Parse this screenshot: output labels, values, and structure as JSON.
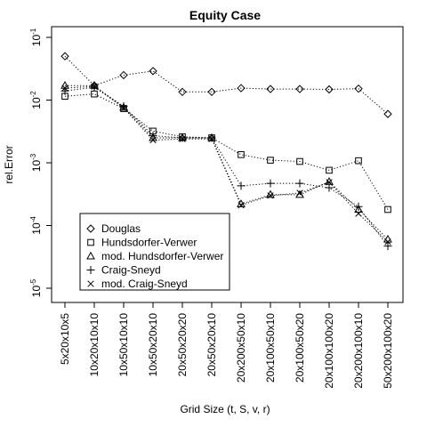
{
  "chart_data": {
    "type": "line",
    "title": "Equity Case",
    "xlabel": "Grid Size (t, S, v, r)",
    "ylabel": "rel.Error",
    "y_scale": "log",
    "ylim": [
      1e-05,
      0.1
    ],
    "y_ticks": [
      {
        "value": 1e-05,
        "base": "10",
        "exp": "-5"
      },
      {
        "value": 0.0001,
        "base": "10",
        "exp": "-4"
      },
      {
        "value": 0.001,
        "base": "10",
        "exp": "-3"
      },
      {
        "value": 0.01,
        "base": "10",
        "exp": "-2"
      },
      {
        "value": 0.1,
        "base": "10",
        "exp": "-1"
      }
    ],
    "categories": [
      "5x20x10x5",
      "10x20x10x10",
      "10x50x10x10",
      "10x50x20x10",
      "20x50x20x20",
      "20x50x20x10",
      "20x200x50x10",
      "20x100x50x10",
      "20x100x50x20",
      "20x100x100x20",
      "20x200x100x10",
      "50x200x100x20"
    ],
    "legend_position": "bottom-left",
    "grid": false,
    "series": [
      {
        "name": "Douglas",
        "marker": "diamond",
        "values": [
          0.05,
          0.017,
          0.025,
          0.029,
          0.0135,
          0.0135,
          0.0155,
          0.015,
          0.015,
          0.0148,
          0.0152,
          0.006
        ]
      },
      {
        "name": "Hundsdorfer-Verwer",
        "marker": "square",
        "values": [
          0.0115,
          0.0125,
          0.0073,
          0.0032,
          0.0026,
          0.0025,
          0.00135,
          0.0011,
          0.00105,
          0.00076,
          0.00108,
          0.00018
        ]
      },
      {
        "name": "mod. Hundsdorfer-Verwer",
        "marker": "triangle",
        "values": [
          0.017,
          0.017,
          0.0076,
          0.0025,
          0.0025,
          0.0025,
          0.00022,
          0.00031,
          0.00031,
          0.0005,
          0.00018,
          6e-05
        ]
      },
      {
        "name": "Craig-Sneyd",
        "marker": "plus",
        "values": [
          0.014,
          0.016,
          0.008,
          0.0027,
          0.0025,
          0.0025,
          0.00043,
          0.00047,
          0.00047,
          0.0004,
          0.0002,
          4.7e-05
        ]
      },
      {
        "name": "mod. Craig-Sneyd",
        "marker": "x",
        "values": [
          0.0155,
          0.0165,
          0.0075,
          0.0023,
          0.0024,
          0.0024,
          0.00021,
          0.0003,
          0.00033,
          0.00049,
          0.000155,
          5.5e-05
        ]
      }
    ]
  }
}
